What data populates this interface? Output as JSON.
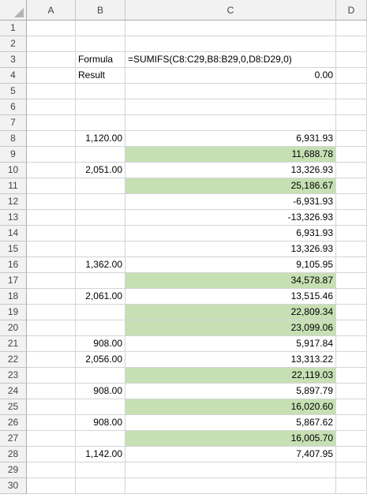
{
  "columns": [
    "A",
    "B",
    "C",
    "D"
  ],
  "colors": {
    "highlight": "#c6e0b4",
    "gridline": "#d4d4d4",
    "header_bg": "#f2f2f2"
  },
  "rows": [
    {
      "n": "1",
      "b": "",
      "c": "",
      "hl": false
    },
    {
      "n": "2",
      "b": "",
      "c": "",
      "hl": false
    },
    {
      "n": "3",
      "b": "Formula",
      "c": "=SUMIFS(C8:C29,B8:B29,0,D8:D29,0)",
      "hl": false
    },
    {
      "n": "4",
      "b": "Result",
      "c": "0.00",
      "hl": false
    },
    {
      "n": "5",
      "b": "",
      "c": "",
      "hl": false
    },
    {
      "n": "6",
      "b": "",
      "c": "",
      "hl": false
    },
    {
      "n": "7",
      "b": "",
      "c": "",
      "hl": false
    },
    {
      "n": "8",
      "b": "1,120.00",
      "c": "6,931.93",
      "hl": false
    },
    {
      "n": "9",
      "b": "",
      "c": "11,688.78",
      "hl": true
    },
    {
      "n": "10",
      "b": "2,051.00",
      "c": "13,326.93",
      "hl": false
    },
    {
      "n": "11",
      "b": "",
      "c": "25,186.67",
      "hl": true
    },
    {
      "n": "12",
      "b": "",
      "c": "-6,931.93",
      "hl": false
    },
    {
      "n": "13",
      "b": "",
      "c": "-13,326.93",
      "hl": false
    },
    {
      "n": "14",
      "b": "",
      "c": "6,931.93",
      "hl": false
    },
    {
      "n": "15",
      "b": "",
      "c": "13,326.93",
      "hl": false
    },
    {
      "n": "16",
      "b": "1,362.00",
      "c": "9,105.95",
      "hl": false
    },
    {
      "n": "17",
      "b": "",
      "c": "34,578.87",
      "hl": true
    },
    {
      "n": "18",
      "b": "2,061.00",
      "c": "13,515.46",
      "hl": false
    },
    {
      "n": "19",
      "b": "",
      "c": "22,809.34",
      "hl": true
    },
    {
      "n": "20",
      "b": "",
      "c": "23,099.06",
      "hl": true
    },
    {
      "n": "21",
      "b": "908.00",
      "c": "5,917.84",
      "hl": false
    },
    {
      "n": "22",
      "b": "2,056.00",
      "c": "13,313.22",
      "hl": false
    },
    {
      "n": "23",
      "b": "",
      "c": "22,119.03",
      "hl": true
    },
    {
      "n": "24",
      "b": "908.00",
      "c": "5,897.79",
      "hl": false
    },
    {
      "n": "25",
      "b": "",
      "c": "16,020.60",
      "hl": true
    },
    {
      "n": "26",
      "b": "908.00",
      "c": "5,867.62",
      "hl": false
    },
    {
      "n": "27",
      "b": "",
      "c": "16,005.70",
      "hl": true
    },
    {
      "n": "28",
      "b": "1,142.00",
      "c": "7,407.95",
      "hl": false
    },
    {
      "n": "29",
      "b": "",
      "c": "",
      "hl": false
    },
    {
      "n": "30",
      "b": "",
      "c": "",
      "hl": false
    }
  ]
}
